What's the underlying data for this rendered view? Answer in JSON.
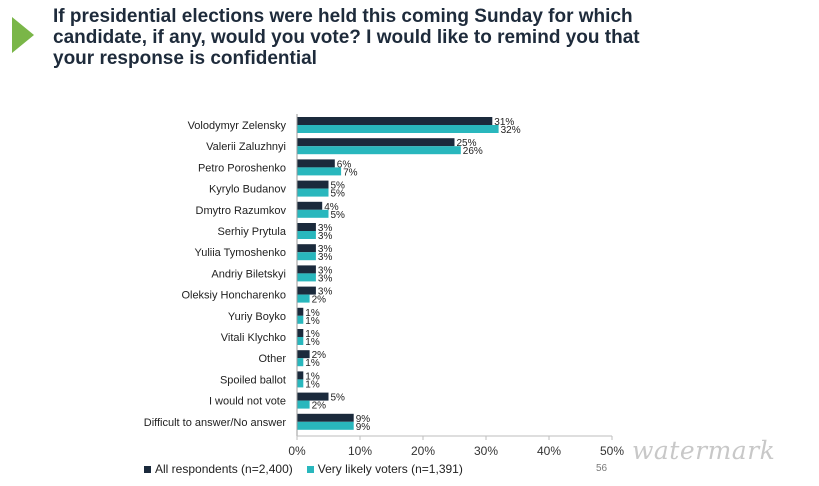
{
  "title": "If presidential elections were held this coming Sunday for which candidate, if any, would you vote? I would like to remind you that your response is confidential",
  "page_number": "56",
  "watermark": "watermark",
  "colors": {
    "accent": "#7ab648",
    "title": "#1e2b3b"
  },
  "chart_data": {
    "type": "bar",
    "orientation": "horizontal",
    "categories": [
      "Volodymyr Zelensky",
      "Valerii Zaluzhnyi",
      "Petro Poroshenko",
      "Kyrylo Budanov",
      "Dmytro Razumkov",
      "Serhiy Prytula",
      "Yuliia Tymoshenko",
      "Andriy Biletskyi",
      "Oleksiy Honcharenko",
      "Yuriy Boyko",
      "Vitali Klychko",
      "Other",
      "Spoiled ballot",
      "I would not vote",
      "Difficult to answer/No answer"
    ],
    "series": [
      {
        "name": "All respondents (n=2,400)",
        "color": "#1b2a3c",
        "values": [
          31,
          25,
          6,
          5,
          4,
          3,
          3,
          3,
          3,
          1,
          1,
          2,
          1,
          5,
          9
        ]
      },
      {
        "name": "Very likely voters (n=1,391)",
        "color": "#29b7bd",
        "values": [
          32,
          26,
          7,
          5,
          5,
          3,
          3,
          3,
          2,
          1,
          1,
          1,
          1,
          2,
          9
        ]
      }
    ],
    "xlim": [
      0,
      50
    ],
    "xticks": [
      "0%",
      "10%",
      "20%",
      "30%",
      "40%",
      "50%"
    ],
    "xtick_values": [
      0,
      10,
      20,
      30,
      40,
      50
    ],
    "value_suffix": "%",
    "grid": false,
    "legend": "bottom"
  }
}
